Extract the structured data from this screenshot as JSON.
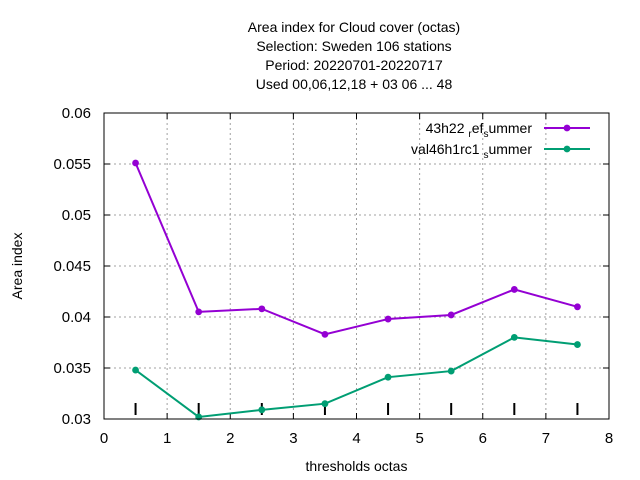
{
  "chart_data": {
    "type": "line",
    "title_lines": [
      "Area index  for Cloud cover (octas)",
      "Selection: Sweden    106 stations",
      "Period: 20220701-20220717",
      "Used  00,06,12,18  + 03 06 ... 48"
    ],
    "xlabel": "thresholds octas",
    "ylabel": "Area index",
    "xlim": [
      0,
      8
    ],
    "ylim": [
      0.03,
      0.06
    ],
    "x_ticks": [
      "0",
      "1",
      "2",
      "3",
      "4",
      "5",
      "6",
      "7",
      "8"
    ],
    "y_ticks": [
      "0.03",
      "0.035",
      "0.04",
      "0.045",
      "0.05",
      "0.055",
      "0.06"
    ],
    "x_tick_values": [
      0,
      1,
      2,
      3,
      4,
      5,
      6,
      7,
      8
    ],
    "y_tick_values": [
      0.03,
      0.035,
      0.04,
      0.045,
      0.05,
      0.055,
      0.06
    ],
    "grid": true,
    "legend_position": "top-right",
    "x": [
      0.5,
      1.5,
      2.5,
      3.5,
      4.5,
      5.5,
      6.5,
      7.5
    ],
    "series": [
      {
        "legend_parts": [
          "43h22 ",
          "r",
          "ef",
          "s",
          "ummer"
        ],
        "color": "#9400d3",
        "values": [
          0.0551,
          0.0405,
          0.0408,
          0.0383,
          0.0398,
          0.0402,
          0.0427,
          0.041
        ]
      },
      {
        "legend_parts": [
          "val46h1rc1 ",
          "",
          "",
          "s",
          "ummer"
        ],
        "color": "#009e73",
        "values": [
          0.0348,
          0.0302,
          0.0309,
          0.0315,
          0.0341,
          0.0347,
          0.038,
          0.0373
        ]
      }
    ],
    "sample_marks_x": [
      0.5,
      1.5,
      2.5,
      3.5,
      4.5,
      5.5,
      6.5,
      7.5
    ],
    "sample_marks_y": 0.03
  }
}
